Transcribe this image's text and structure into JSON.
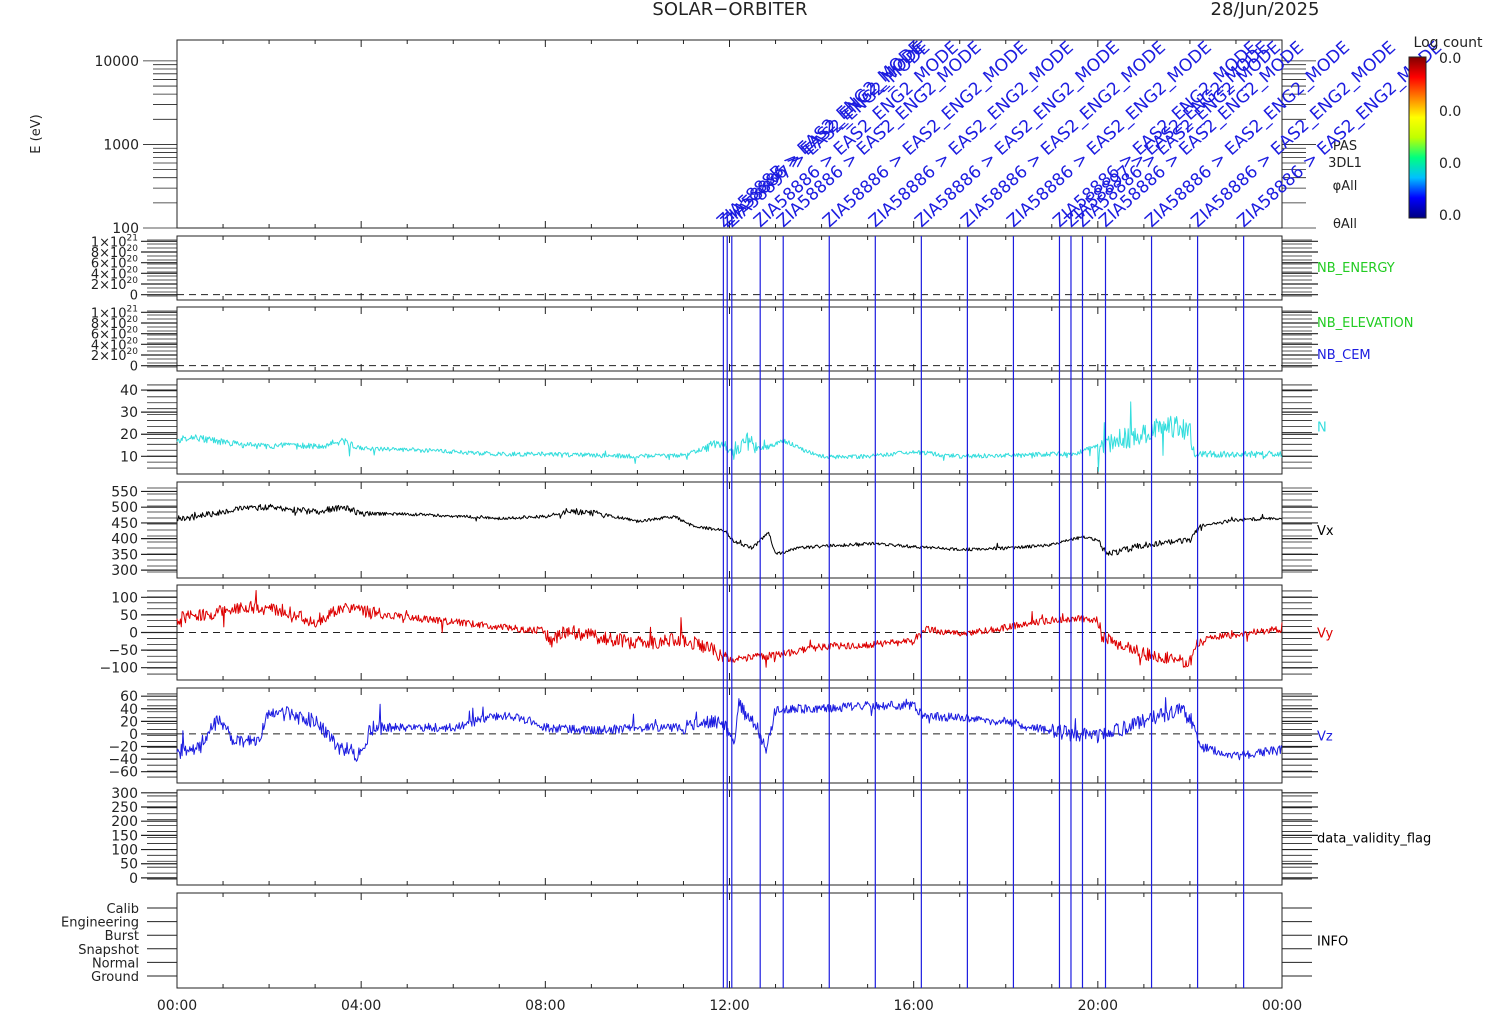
{
  "header": {
    "title": "SOLAR−ORBITER",
    "date": "28/Jun/2025"
  },
  "spectrogram": {
    "ylabel": "E (eV)",
    "yticks": [
      "10000",
      "1000",
      "100"
    ],
    "labels": [
      "PAS",
      "3DL1",
      "φAll",
      "θAll"
    ]
  },
  "colorbar": {
    "title": "Log count",
    "ticks": [
      "0.0",
      "0.0",
      "0.0",
      "0.0"
    ],
    "colors": [
      "#000080",
      "#0000ff",
      "#00c0ff",
      "#00ff80",
      "#c0ff00",
      "#ffff00",
      "#ff8000",
      "#ff0000",
      "#800000"
    ]
  },
  "events": {
    "color": "#1c1ce0",
    "times": [
      "11:52",
      "11:57",
      "12:03",
      "12:40",
      "13:10",
      "14:10",
      "15:10",
      "16:10",
      "17:10",
      "18:10",
      "19:10",
      "19:25",
      "19:40",
      "20:10",
      "21:10",
      "22:10",
      "23:10"
    ],
    "labels": [
      {
        "time": "11:52",
        "text": "ZIA5888B > EAS2_ENG2_MODE"
      },
      {
        "time": "11:57",
        "text": "ZIA58886 > EAS2_ENG2_MODE"
      },
      {
        "time": "12:03",
        "text": "ZIA58897 > EAS2_ENG2_MODE"
      },
      {
        "time": "12:40",
        "text": "ZIA58886 > EAS2_ENG2_MODE"
      },
      {
        "time": "13:10",
        "text": "ZIA58886 > EAS2_ENG2_MODE"
      },
      {
        "time": "14:10",
        "text": "ZIA58886 > EAS2_ENG2_MODE"
      },
      {
        "time": "15:10",
        "text": "ZIA58886 > EAS2_ENG2_MODE"
      },
      {
        "time": "16:10",
        "text": "ZIA58886 > EAS2_ENG2_MODE"
      },
      {
        "time": "17:10",
        "text": "ZIA58886 > EAS2_ENG2_MODE"
      },
      {
        "time": "18:10",
        "text": "ZIA58886 > EAS2_ENG2_MODE"
      },
      {
        "time": "19:10",
        "text": "ZIA58886 > EAS2_ENG2_MODE"
      },
      {
        "time": "19:25",
        "text": "ZIA58897 > EAS2_ENG2_MODE"
      },
      {
        "time": "19:40",
        "text": "ZIA58886 > EAS2_ENG2_MODE"
      },
      {
        "time": "20:10",
        "text": "ZIA58886 > EAS2_ENG2_MODE"
      },
      {
        "time": "21:10",
        "text": "ZIA58886 > EAS2_ENG2_MODE"
      },
      {
        "time": "22:10",
        "text": "ZIA58886 > EAS2_ENG2_MODE"
      },
      {
        "time": "23:10",
        "text": "ZIA58886 > EAS2_ENG2_MODE"
      }
    ]
  },
  "chart_data": {
    "type": "line",
    "x_axis": {
      "range": [
        "00:00",
        "24:00"
      ],
      "tick_labels": [
        "00:00",
        "04:00",
        "08:00",
        "12:00",
        "16:00",
        "20:00",
        "00:00"
      ]
    },
    "panels": [
      {
        "id": "nb_energy",
        "labels": [
          "NB_ENERGY"
        ],
        "label_colors": [
          "#22cc22"
        ],
        "yticks": [
          {
            "v": 0,
            "base": "0",
            "exp": ""
          },
          {
            "v": 2,
            "base": "2×10",
            "exp": "20"
          },
          {
            "v": 4,
            "base": "4×10",
            "exp": "20"
          },
          {
            "v": 6,
            "base": "6×10",
            "exp": "20"
          },
          {
            "v": 8,
            "base": "8×10",
            "exp": "20"
          },
          {
            "v": 10,
            "base": "1×10",
            "exp": "21"
          }
        ],
        "ylim": [
          -1,
          11
        ],
        "zero_line": true
      },
      {
        "id": "nb_elevation",
        "labels": [
          "NB_ELEVATION",
          "NB_CEM"
        ],
        "label_colors": [
          "#22cc22",
          "#1c1ce0"
        ],
        "yticks": [
          {
            "v": 0,
            "base": "0",
            "exp": ""
          },
          {
            "v": 2,
            "base": "2×10",
            "exp": "20"
          },
          {
            "v": 4,
            "base": "4×10",
            "exp": "20"
          },
          {
            "v": 6,
            "base": "6×10",
            "exp": "20"
          },
          {
            "v": 8,
            "base": "8×10",
            "exp": "20"
          },
          {
            "v": 10,
            "base": "1×10",
            "exp": "21"
          }
        ],
        "ylim": [
          -1,
          11
        ],
        "zero_line": true
      },
      {
        "id": "density",
        "labels": [
          "N"
        ],
        "label_colors": [
          "#33dddd"
        ],
        "yticks": [
          10,
          20,
          30,
          40
        ],
        "ylim": [
          2,
          45
        ],
        "zero_line": false,
        "series": {
          "name": "N",
          "color": "#33dddd",
          "keys": [
            [
              0,
              17
            ],
            [
              0.3,
              19
            ],
            [
              0.8,
              17
            ],
            [
              1.5,
              15
            ],
            [
              2.5,
              14.5
            ],
            [
              3.2,
              15
            ],
            [
              3.6,
              17
            ],
            [
              4.0,
              13.5
            ],
            [
              5,
              13
            ],
            [
              6,
              12
            ],
            [
              7,
              11
            ],
            [
              8,
              11
            ],
            [
              9,
              10.5
            ],
            [
              10,
              10
            ],
            [
              11,
              10.5
            ],
            [
              11.5,
              14
            ],
            [
              11.85,
              16
            ],
            [
              12.1,
              10
            ],
            [
              12.4,
              20
            ],
            [
              12.55,
              14
            ],
            [
              12.8,
              14
            ],
            [
              13.2,
              17
            ],
            [
              13.7,
              12
            ],
            [
              14.0,
              10
            ],
            [
              15,
              10
            ],
            [
              16,
              12
            ],
            [
              16.5,
              11
            ],
            [
              17,
              10
            ],
            [
              18,
              10.5
            ],
            [
              19,
              11
            ],
            [
              19.5,
              11
            ],
            [
              20.0,
              15
            ],
            [
              20.5,
              18
            ],
            [
              21,
              20
            ],
            [
              21.5,
              24
            ],
            [
              22.0,
              22
            ],
            [
              22.1,
              11
            ],
            [
              23,
              11
            ],
            [
              24,
              11
            ]
          ],
          "noise": [
            [
              0,
              4,
              1.5
            ],
            [
              11.5,
              12.6,
              2.5
            ],
            [
              20.0,
              22.05,
              5
            ],
            [
              22.05,
              24,
              1.5
            ]
          ],
          "default_noise": 1.0
        }
      },
      {
        "id": "vx",
        "labels": [
          "Vx"
        ],
        "label_colors": [
          "#000000"
        ],
        "yticks": [
          300,
          350,
          400,
          450,
          500,
          550
        ],
        "ylim": [
          275,
          580
        ],
        "zero_line": false,
        "series": {
          "name": "Vx",
          "color": "#000000",
          "keys": [
            [
              0,
              460
            ],
            [
              0.6,
              475
            ],
            [
              1.3,
              495
            ],
            [
              2,
              500
            ],
            [
              3,
              485
            ],
            [
              3.6,
              500
            ],
            [
              4.0,
              480
            ],
            [
              5,
              478
            ],
            [
              6,
              472
            ],
            [
              7,
              465
            ],
            [
              8,
              470
            ],
            [
              8.5,
              490
            ],
            [
              9.2,
              478
            ],
            [
              10,
              455
            ],
            [
              10.8,
              470
            ],
            [
              11.2,
              440
            ],
            [
              11.9,
              425
            ],
            [
              12.1,
              390
            ],
            [
              12.5,
              370
            ],
            [
              12.85,
              420
            ],
            [
              13.0,
              350
            ],
            [
              13.5,
              370
            ],
            [
              14,
              375
            ],
            [
              15,
              385
            ],
            [
              16,
              375
            ],
            [
              17,
              365
            ],
            [
              18,
              370
            ],
            [
              19,
              380
            ],
            [
              19.3,
              395
            ],
            [
              19.7,
              405
            ],
            [
              20,
              395
            ],
            [
              20.2,
              350
            ],
            [
              21,
              380
            ],
            [
              22,
              395
            ],
            [
              22.2,
              440
            ],
            [
              23,
              460
            ],
            [
              24,
              465
            ]
          ],
          "noise": [
            [
              0,
              4.2,
              10
            ],
            [
              8.3,
              9.3,
              10
            ],
            [
              20,
              22.2,
              10
            ]
          ],
          "default_noise": 5
        }
      },
      {
        "id": "vy",
        "labels": [
          "Vy"
        ],
        "label_colors": [
          "#dd0000"
        ],
        "yticks": [
          -100,
          -50,
          0,
          50,
          100
        ],
        "ylim": [
          -135,
          135
        ],
        "zero_line": true,
        "series": {
          "name": "Vy",
          "color": "#dd0000",
          "keys": [
            [
              0,
              40
            ],
            [
              0.8,
              55
            ],
            [
              1.5,
              75
            ],
            [
              2.5,
              55
            ],
            [
              3.0,
              30
            ],
            [
              3.5,
              70
            ],
            [
              4.5,
              50
            ],
            [
              6,
              30
            ],
            [
              7,
              15
            ],
            [
              8,
              5
            ],
            [
              8.1,
              -25
            ],
            [
              8.5,
              5
            ],
            [
              9,
              -10
            ],
            [
              10,
              -30
            ],
            [
              11,
              -20
            ],
            [
              11.5,
              -40
            ],
            [
              12,
              -80
            ],
            [
              12.5,
              -70
            ],
            [
              13,
              -65
            ],
            [
              14,
              -40
            ],
            [
              15,
              -35
            ],
            [
              16,
              -25
            ],
            [
              16.3,
              10
            ],
            [
              17,
              -5
            ],
            [
              18,
              15
            ],
            [
              19,
              35
            ],
            [
              19.5,
              40
            ],
            [
              20,
              35
            ],
            [
              20.1,
              -15
            ],
            [
              21,
              -60
            ],
            [
              22,
              -85
            ],
            [
              22.2,
              -20
            ],
            [
              23,
              -5
            ],
            [
              24,
              10
            ]
          ],
          "noise": [
            [
              0,
              4.5,
              18
            ],
            [
              8,
              12,
              20
            ],
            [
              20,
              22.3,
              18
            ]
          ],
          "default_noise": 10
        }
      },
      {
        "id": "vz",
        "labels": [
          "Vz"
        ],
        "label_colors": [
          "#1c1ce0"
        ],
        "yticks": [
          -60,
          -40,
          -20,
          0,
          20,
          40,
          60
        ],
        "ylim": [
          -78,
          73
        ],
        "zero_line": true,
        "series": {
          "name": "Vz",
          "color": "#1c1ce0",
          "keys": [
            [
              0,
              -30
            ],
            [
              0.5,
              -20
            ],
            [
              0.9,
              25
            ],
            [
              1.3,
              -15
            ],
            [
              1.8,
              -5
            ],
            [
              2,
              35
            ],
            [
              2.5,
              30
            ],
            [
              3.0,
              20
            ],
            [
              3.5,
              -20
            ],
            [
              4,
              -35
            ],
            [
              4.2,
              10
            ],
            [
              5,
              10
            ],
            [
              6,
              10
            ],
            [
              7,
              30
            ],
            [
              7.5,
              25
            ],
            [
              8,
              10
            ],
            [
              9,
              5
            ],
            [
              10,
              10
            ],
            [
              11,
              10
            ],
            [
              11.8,
              20
            ],
            [
              12.1,
              -10
            ],
            [
              12.2,
              45
            ],
            [
              12.5,
              20
            ],
            [
              12.8,
              -25
            ],
            [
              13.0,
              40
            ],
            [
              14,
              40
            ],
            [
              15,
              45
            ],
            [
              16,
              45
            ],
            [
              16.2,
              30
            ],
            [
              17,
              25
            ],
            [
              18,
              20
            ],
            [
              19,
              5
            ],
            [
              20,
              -5
            ],
            [
              21,
              20
            ],
            [
              21.8,
              40
            ],
            [
              22.05,
              20
            ],
            [
              22.2,
              -20
            ],
            [
              23,
              -35
            ],
            [
              24,
              -25
            ]
          ],
          "noise": [
            [
              0,
              4.5,
              12
            ],
            [
              11,
              13,
              12
            ],
            [
              19,
              22.2,
              12
            ]
          ],
          "default_noise": 7
        }
      },
      {
        "id": "data_validity_flag",
        "labels": [
          "data_validity_flag"
        ],
        "label_colors": [
          "#000000"
        ],
        "yticks": [
          0,
          50,
          100,
          150,
          200,
          250,
          300
        ],
        "ylim": [
          -25,
          310
        ],
        "zero_line": false
      },
      {
        "id": "info",
        "labels": [
          "INFO"
        ],
        "label_colors": [
          "#000000"
        ],
        "yticks_text": [
          "Calib",
          "Engineering",
          "Burst",
          "Snapshot",
          "Normal",
          "Ground"
        ],
        "zero_line": false
      }
    ]
  }
}
